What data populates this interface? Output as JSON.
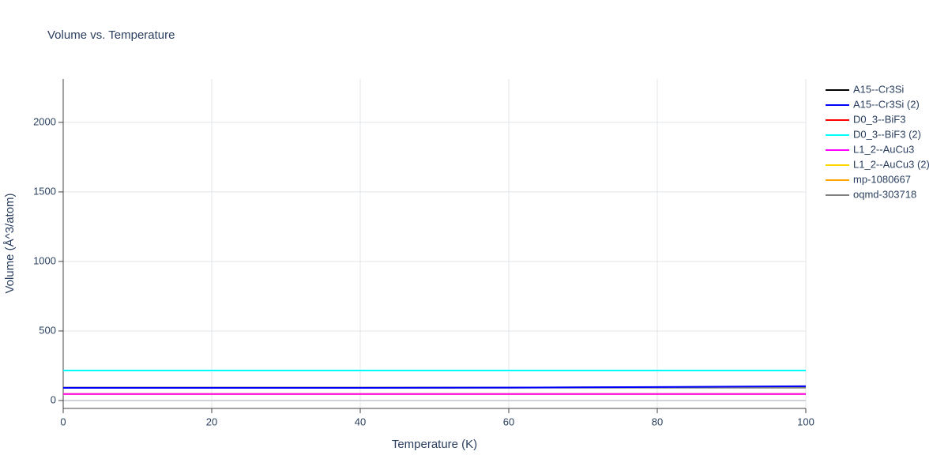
{
  "chart_data": {
    "type": "line",
    "title": "Volume vs. Temperature",
    "x_label": "Temperature (K)",
    "y_label": "Volume (Å^3/atom)",
    "x": [
      0,
      10,
      20,
      30,
      40,
      50,
      60,
      70,
      80,
      90,
      100
    ],
    "series": [
      {
        "name": "A15--Cr3Si",
        "color": "#000000",
        "values": [
          92,
          92,
          92,
          92,
          92,
          92,
          93,
          94,
          96,
          98,
          100
        ]
      },
      {
        "name": "A15--Cr3Si (2)",
        "color": "#0000ff",
        "values": [
          91,
          91,
          91,
          91,
          91,
          92,
          93,
          95,
          97,
          100,
          103
        ]
      },
      {
        "name": "D0_3--BiF3",
        "color": "#ff0000",
        "values": [
          216,
          216,
          216,
          216,
          216,
          216,
          216,
          216,
          216,
          216,
          216
        ]
      },
      {
        "name": "D0_3--BiF3 (2)",
        "color": "#00ffff",
        "values": [
          216,
          216,
          216,
          216,
          216,
          216,
          216,
          216,
          216,
          216,
          216
        ]
      },
      {
        "name": "L1_2--AuCu3",
        "color": "#ff00ff",
        "values": [
          47,
          47,
          47,
          47,
          47,
          47,
          47,
          47,
          47,
          47,
          47
        ]
      },
      {
        "name": "L1_2--AuCu3 (2)",
        "color": "#ffd700",
        "values": [
          47,
          47,
          47,
          47,
          47,
          47,
          47,
          47,
          47,
          47,
          47
        ]
      },
      {
        "name": "mp-1080667",
        "color": "#ffa500",
        "values": [
          47,
          47,
          47,
          47,
          47,
          47,
          47,
          47,
          47,
          47,
          47
        ]
      },
      {
        "name": "oqmd-303718",
        "color": "#808080",
        "values": [
          92,
          92,
          92,
          92,
          92,
          92,
          92,
          92,
          92,
          92,
          92
        ]
      }
    ],
    "xlim": [
      0,
      100
    ],
    "xticks": [
      0,
      20,
      40,
      60,
      80,
      100
    ],
    "ylim": [
      -57,
      2312
    ],
    "yticks": [
      0,
      500,
      1000,
      1500,
      2000
    ],
    "grid": true,
    "legend": "right"
  }
}
